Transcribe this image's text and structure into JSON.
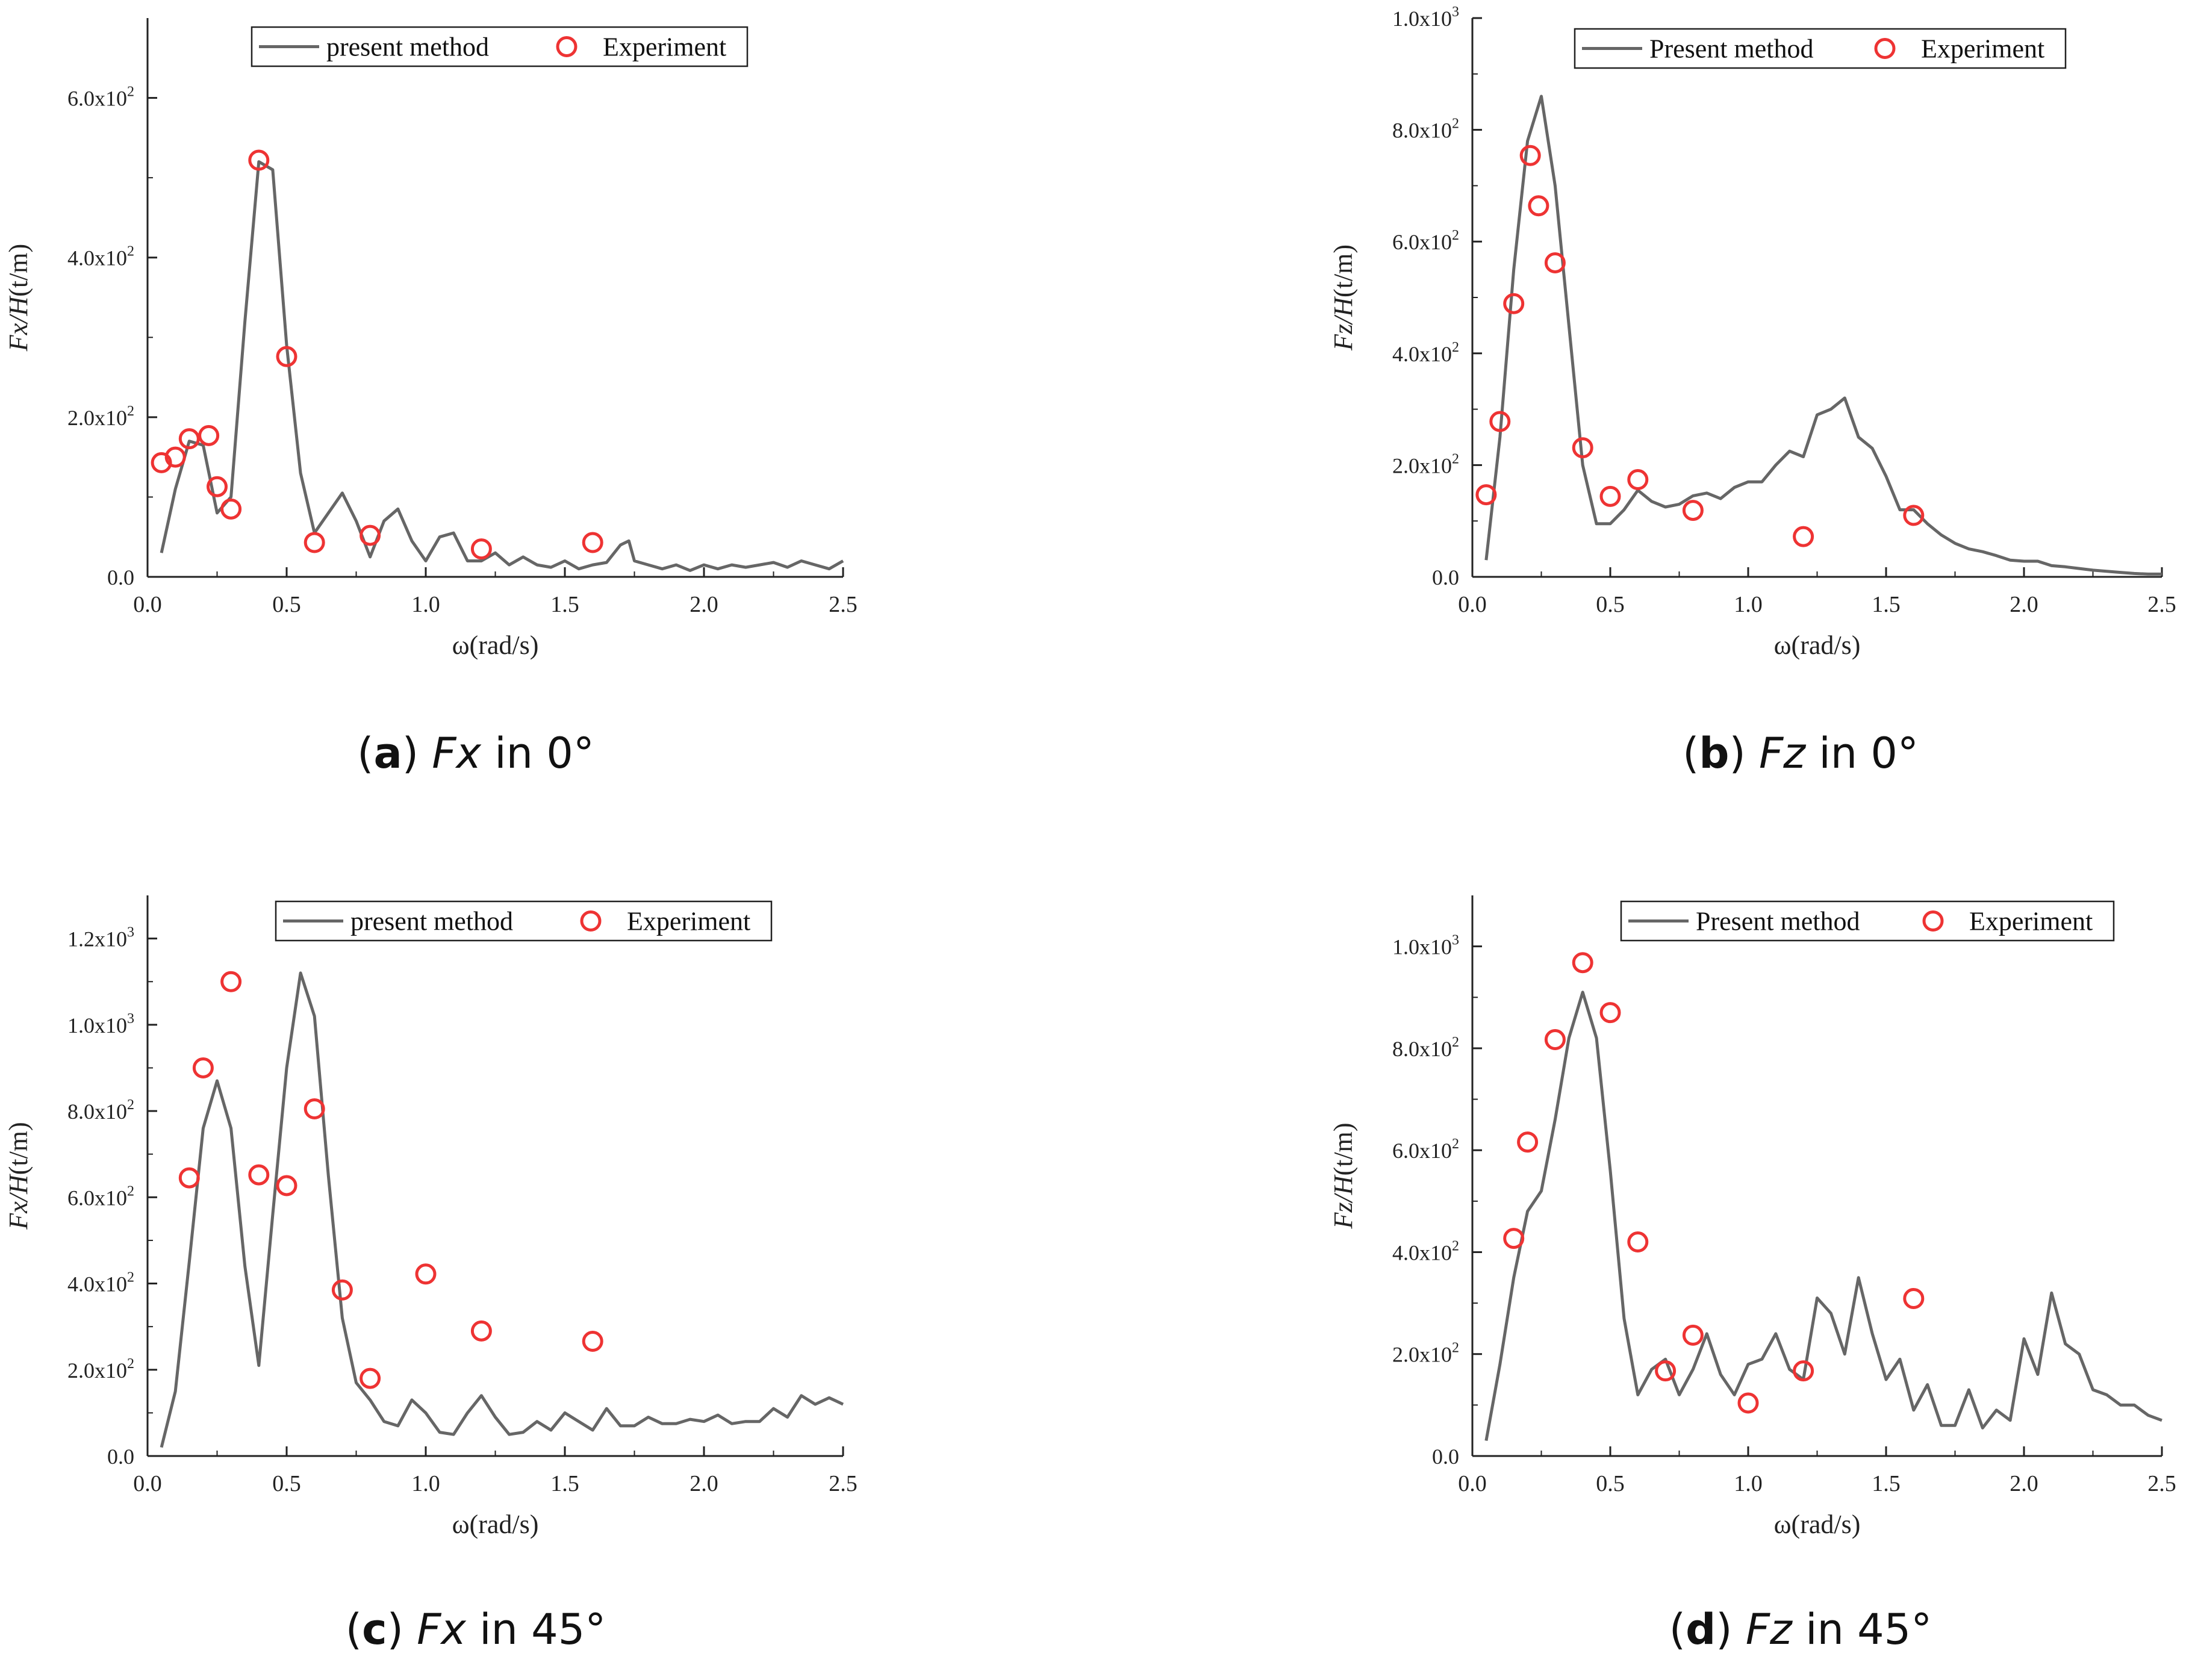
{
  "chart_data": [
    {
      "type": "line",
      "panel": "a",
      "caption": {
        "letter": "a",
        "quantity": "Fx",
        "angle": "in 0°"
      },
      "ylabel": {
        "main": "Fx/H",
        "unit": "(t/m)"
      },
      "xlabel": "ω(rad/s)",
      "xlim": [
        0,
        2.5
      ],
      "ylim": [
        0,
        700
      ],
      "xticks": [
        0.0,
        0.5,
        1.0,
        1.5,
        2.0,
        2.5
      ],
      "xtick_labels": [
        "0.0",
        "0.5",
        "1.0",
        "1.5",
        "2.0",
        "2.5"
      ],
      "yticks": [
        0,
        200,
        400,
        600
      ],
      "ytick_labels": [
        {
          "mant": "0.0",
          "exp": ""
        },
        {
          "mant": "2.0x10",
          "exp": "2"
        },
        {
          "mant": "4.0x10",
          "exp": "2"
        },
        {
          "mant": "6.0x10",
          "exp": "2"
        }
      ],
      "legend": {
        "position": "top-center",
        "line_label": "present method",
        "marker_label": "Experiment"
      },
      "line_color": "#666666",
      "marker_color": "#ee3333",
      "series": [
        {
          "name": "present method",
          "kind": "line",
          "x": [
            0.05,
            0.1,
            0.15,
            0.2,
            0.25,
            0.3,
            0.35,
            0.4,
            0.45,
            0.5,
            0.55,
            0.6,
            0.65,
            0.7,
            0.75,
            0.8,
            0.85,
            0.9,
            0.95,
            1.0,
            1.05,
            1.1,
            1.15,
            1.2,
            1.25,
            1.3,
            1.35,
            1.4,
            1.45,
            1.5,
            1.55,
            1.6,
            1.65,
            1.7,
            1.73,
            1.75,
            1.8,
            1.85,
            1.9,
            1.95,
            2.0,
            2.05,
            2.1,
            2.15,
            2.2,
            2.25,
            2.3,
            2.35,
            2.4,
            2.45,
            2.5
          ],
          "y": [
            30,
            110,
            170,
            165,
            80,
            100,
            320,
            520,
            510,
            290,
            130,
            55,
            80,
            105,
            70,
            25,
            70,
            85,
            45,
            20,
            50,
            55,
            20,
            20,
            30,
            15,
            25,
            15,
            12,
            20,
            10,
            15,
            18,
            40,
            45,
            20,
            15,
            10,
            15,
            8,
            15,
            10,
            15,
            12,
            15,
            18,
            12,
            20,
            15,
            10,
            20
          ]
        },
        {
          "name": "Experiment",
          "kind": "scatter",
          "x": [
            0.05,
            0.1,
            0.15,
            0.22,
            0.25,
            0.3,
            0.4,
            0.5,
            0.6,
            0.8,
            1.2,
            1.6
          ],
          "y": [
            143,
            150,
            173,
            177,
            113,
            85,
            522,
            276,
            43,
            52,
            35,
            43
          ]
        }
      ]
    },
    {
      "type": "line",
      "panel": "b",
      "caption": {
        "letter": "b",
        "quantity": "Fz",
        "angle": "in 0°"
      },
      "ylabel": {
        "main": "Fz/H",
        "unit": "(t/m)"
      },
      "xlabel": "ω(rad/s)",
      "xlim": [
        0,
        2.5
      ],
      "ylim": [
        0,
        1000
      ],
      "xticks": [
        0.0,
        0.5,
        1.0,
        1.5,
        2.0,
        2.5
      ],
      "xtick_labels": [
        "0.0",
        "0.5",
        "1.0",
        "1.5",
        "2.0",
        "2.5"
      ],
      "yticks": [
        0,
        200,
        400,
        600,
        800,
        1000
      ],
      "ytick_labels": [
        {
          "mant": "0.0",
          "exp": ""
        },
        {
          "mant": "2.0x10",
          "exp": "2"
        },
        {
          "mant": "4.0x10",
          "exp": "2"
        },
        {
          "mant": "6.0x10",
          "exp": "2"
        },
        {
          "mant": "8.0x10",
          "exp": "2"
        },
        {
          "mant": "1.0x10",
          "exp": "3"
        }
      ],
      "legend": {
        "position": "top-right",
        "line_label": "Present method",
        "marker_label": "Experiment"
      },
      "line_color": "#666666",
      "marker_color": "#ee3333",
      "series": [
        {
          "name": "Present method",
          "kind": "line",
          "x": [
            0.05,
            0.1,
            0.15,
            0.2,
            0.25,
            0.3,
            0.35,
            0.4,
            0.45,
            0.5,
            0.55,
            0.6,
            0.65,
            0.7,
            0.75,
            0.8,
            0.85,
            0.9,
            0.95,
            1.0,
            1.05,
            1.1,
            1.15,
            1.2,
            1.25,
            1.3,
            1.35,
            1.4,
            1.45,
            1.5,
            1.55,
            1.6,
            1.65,
            1.7,
            1.75,
            1.8,
            1.85,
            1.9,
            1.95,
            2.0,
            2.05,
            2.1,
            2.15,
            2.2,
            2.25,
            2.3,
            2.35,
            2.4,
            2.45,
            2.5
          ],
          "y": [
            30,
            250,
            550,
            780,
            860,
            700,
            450,
            200,
            95,
            95,
            120,
            155,
            135,
            125,
            130,
            145,
            150,
            140,
            160,
            170,
            170,
            200,
            225,
            215,
            290,
            300,
            320,
            250,
            230,
            180,
            120,
            120,
            95,
            75,
            60,
            50,
            45,
            38,
            30,
            28,
            28,
            20,
            18,
            15,
            12,
            10,
            8,
            6,
            5,
            5
          ]
        },
        {
          "name": "Experiment",
          "kind": "scatter",
          "x": [
            0.05,
            0.1,
            0.15,
            0.21,
            0.24,
            0.3,
            0.4,
            0.5,
            0.6,
            0.8,
            1.2,
            1.6
          ],
          "y": [
            147,
            278,
            489,
            754,
            664,
            562,
            231,
            144,
            174,
            119,
            72,
            110
          ]
        }
      ]
    },
    {
      "type": "line",
      "panel": "c",
      "caption": {
        "letter": "c",
        "quantity": "Fx",
        "angle": "in 45°"
      },
      "ylabel": {
        "main": "Fx/H",
        "unit": "(t/m)"
      },
      "xlabel": "ω(rad/s)",
      "xlim": [
        0,
        2.5
      ],
      "ylim": [
        0,
        1300
      ],
      "xticks": [
        0.0,
        0.5,
        1.0,
        1.5,
        2.0,
        2.5
      ],
      "xtick_labels": [
        "0.0",
        "0.5",
        "1.0",
        "1.5",
        "2.0",
        "2.5"
      ],
      "yticks": [
        0,
        200,
        400,
        600,
        800,
        1000,
        1200
      ],
      "ytick_labels": [
        {
          "mant": "0.0",
          "exp": ""
        },
        {
          "mant": "2.0x10",
          "exp": "2"
        },
        {
          "mant": "4.0x10",
          "exp": "2"
        },
        {
          "mant": "6.0x10",
          "exp": "2"
        },
        {
          "mant": "8.0x10",
          "exp": "2"
        },
        {
          "mant": "1.0x10",
          "exp": "3"
        },
        {
          "mant": "1.2x10",
          "exp": "3"
        }
      ],
      "legend": {
        "position": "top-right",
        "line_label": "present method",
        "marker_label": "Experiment"
      },
      "line_color": "#666666",
      "marker_color": "#ee3333",
      "series": [
        {
          "name": "present method",
          "kind": "line",
          "x": [
            0.05,
            0.1,
            0.15,
            0.2,
            0.25,
            0.3,
            0.35,
            0.4,
            0.45,
            0.5,
            0.55,
            0.6,
            0.65,
            0.7,
            0.75,
            0.8,
            0.85,
            0.9,
            0.95,
            1.0,
            1.05,
            1.1,
            1.15,
            1.2,
            1.25,
            1.3,
            1.35,
            1.4,
            1.45,
            1.5,
            1.55,
            1.6,
            1.65,
            1.7,
            1.75,
            1.8,
            1.85,
            1.9,
            1.95,
            2.0,
            2.05,
            2.1,
            2.15,
            2.2,
            2.25,
            2.3,
            2.35,
            2.4,
            2.45,
            2.5
          ],
          "y": [
            20,
            150,
            450,
            760,
            870,
            760,
            440,
            210,
            560,
            900,
            1120,
            1020,
            650,
            320,
            170,
            130,
            80,
            70,
            130,
            100,
            55,
            50,
            100,
            140,
            90,
            50,
            55,
            80,
            60,
            100,
            80,
            60,
            110,
            70,
            70,
            90,
            75,
            75,
            85,
            80,
            95,
            75,
            80,
            80,
            110,
            90,
            140,
            120,
            135,
            120
          ]
        },
        {
          "name": "Experiment",
          "kind": "scatter",
          "x": [
            0.15,
            0.2,
            0.3,
            0.4,
            0.5,
            0.6,
            0.7,
            0.8,
            1.0,
            1.2,
            1.6
          ],
          "y": [
            645,
            900,
            1100,
            652,
            627,
            805,
            385,
            180,
            422,
            290,
            266
          ]
        }
      ]
    },
    {
      "type": "line",
      "panel": "d",
      "caption": {
        "letter": "d",
        "quantity": "Fz",
        "angle": "in 45°"
      },
      "ylabel": {
        "main": "Fz/H",
        "unit": "(t/m)"
      },
      "xlabel": "ω(rad/s)",
      "xlim": [
        0,
        2.5
      ],
      "ylim": [
        0,
        1100
      ],
      "xticks": [
        0.0,
        0.5,
        1.0,
        1.5,
        2.0,
        2.5
      ],
      "xtick_labels": [
        "0.0",
        "0.5",
        "1.0",
        "1.5",
        "2.0",
        "2.5"
      ],
      "yticks": [
        0,
        200,
        400,
        600,
        800,
        1000
      ],
      "ytick_labels": [
        {
          "mant": "0.0",
          "exp": ""
        },
        {
          "mant": "2.0x10",
          "exp": "2"
        },
        {
          "mant": "4.0x10",
          "exp": "2"
        },
        {
          "mant": "6.0x10",
          "exp": "2"
        },
        {
          "mant": "8.0x10",
          "exp": "2"
        },
        {
          "mant": "1.0x10",
          "exp": "3"
        }
      ],
      "legend": {
        "position": "top-right",
        "line_label": "Present method",
        "marker_label": "Experiment"
      },
      "line_color": "#666666",
      "marker_color": "#ee3333",
      "series": [
        {
          "name": "Present method",
          "kind": "line",
          "x": [
            0.05,
            0.1,
            0.15,
            0.2,
            0.25,
            0.3,
            0.35,
            0.4,
            0.45,
            0.5,
            0.55,
            0.6,
            0.65,
            0.7,
            0.75,
            0.8,
            0.85,
            0.9,
            0.95,
            1.0,
            1.05,
            1.1,
            1.15,
            1.2,
            1.25,
            1.3,
            1.35,
            1.4,
            1.45,
            1.5,
            1.55,
            1.6,
            1.65,
            1.7,
            1.75,
            1.8,
            1.85,
            1.9,
            1.95,
            2.0,
            2.05,
            2.1,
            2.15,
            2.2,
            2.25,
            2.3,
            2.35,
            2.4,
            2.45,
            2.5
          ],
          "y": [
            30,
            180,
            350,
            480,
            520,
            660,
            820,
            910,
            820,
            560,
            270,
            120,
            170,
            190,
            120,
            170,
            240,
            160,
            120,
            180,
            190,
            240,
            170,
            150,
            310,
            280,
            200,
            350,
            240,
            150,
            190,
            90,
            140,
            60,
            60,
            130,
            55,
            90,
            70,
            230,
            160,
            320,
            220,
            200,
            130,
            120,
            100,
            100,
            80,
            70
          ]
        },
        {
          "name": "Experiment",
          "kind": "scatter",
          "x": [
            0.15,
            0.2,
            0.3,
            0.4,
            0.5,
            0.6,
            0.7,
            0.8,
            1.0,
            1.2,
            1.6
          ],
          "y": [
            427,
            616,
            817,
            968,
            870,
            420,
            167,
            237,
            104,
            167,
            309
          ]
        }
      ]
    }
  ]
}
